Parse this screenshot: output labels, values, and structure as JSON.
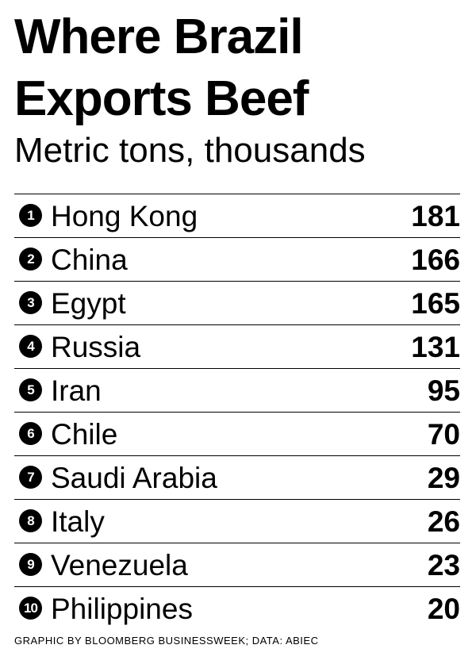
{
  "header": {
    "title": "Where Brazil Exports Beef",
    "subtitle": "Metric tons, thousands"
  },
  "table": {
    "rows": [
      {
        "rank": 1,
        "country": "Hong Kong",
        "value": 181
      },
      {
        "rank": 2,
        "country": "China",
        "value": 166
      },
      {
        "rank": 3,
        "country": "Egypt",
        "value": 165
      },
      {
        "rank": 4,
        "country": "Russia",
        "value": 131
      },
      {
        "rank": 5,
        "country": "Iran",
        "value": 95
      },
      {
        "rank": 6,
        "country": "Chile",
        "value": 70
      },
      {
        "rank": 7,
        "country": "Saudi Arabia",
        "value": 29
      },
      {
        "rank": 8,
        "country": "Italy",
        "value": 26
      },
      {
        "rank": 9,
        "country": "Venezuela",
        "value": 23
      },
      {
        "rank": 10,
        "country": "Philippines",
        "value": 20
      }
    ]
  },
  "footer": {
    "credit": "GRAPHIC BY BLOOMBERG BUSINESSWEEK; DATA: ABIEC"
  }
}
